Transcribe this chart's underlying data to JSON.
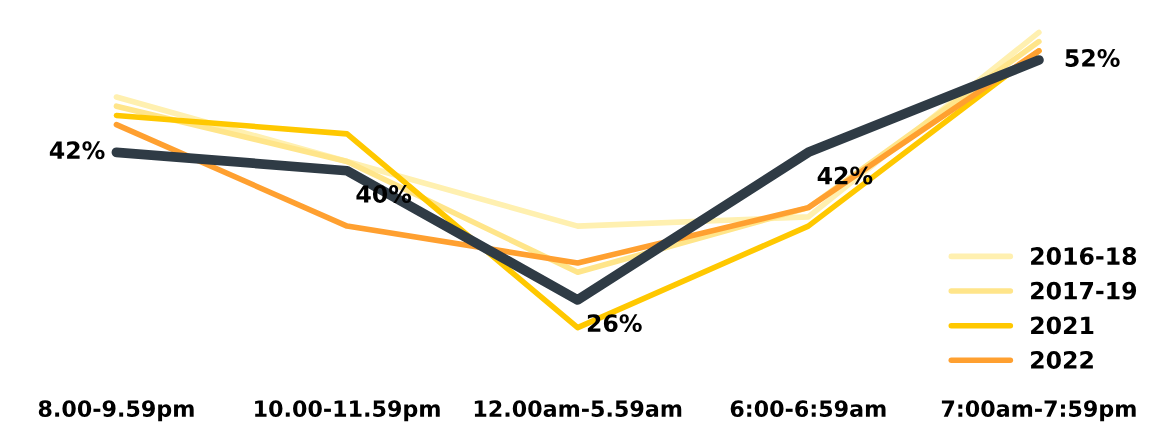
{
  "chart_data": {
    "type": "line",
    "categories": [
      "8.00-9.59pm",
      "10.00-11.59pm",
      "12.00am-5.59am",
      "6:00-6:59am",
      "7:00am-7:59pm"
    ],
    "series": [
      {
        "name": "2016-18",
        "color": "#fff0b0",
        "values": [
          48,
          41,
          34,
          35,
          55
        ]
      },
      {
        "name": "2017-19",
        "color": "#ffe58a",
        "values": [
          47,
          41,
          29,
          36,
          54
        ]
      },
      {
        "name": "2021",
        "color": "#ffc800",
        "values": [
          46,
          44,
          23,
          34,
          53
        ]
      },
      {
        "name": "2022",
        "color": "#ffa030",
        "values": [
          45,
          34,
          30,
          36,
          53
        ]
      },
      {
        "color": "#2f3b45",
        "values": [
          42,
          40,
          26,
          42,
          52
        ],
        "value_labels": [
          "42%",
          "40%",
          "26%",
          "42%",
          "52%"
        ]
      }
    ],
    "grid": false,
    "legend": "right",
    "marker": "none",
    "line_style": "solid"
  }
}
